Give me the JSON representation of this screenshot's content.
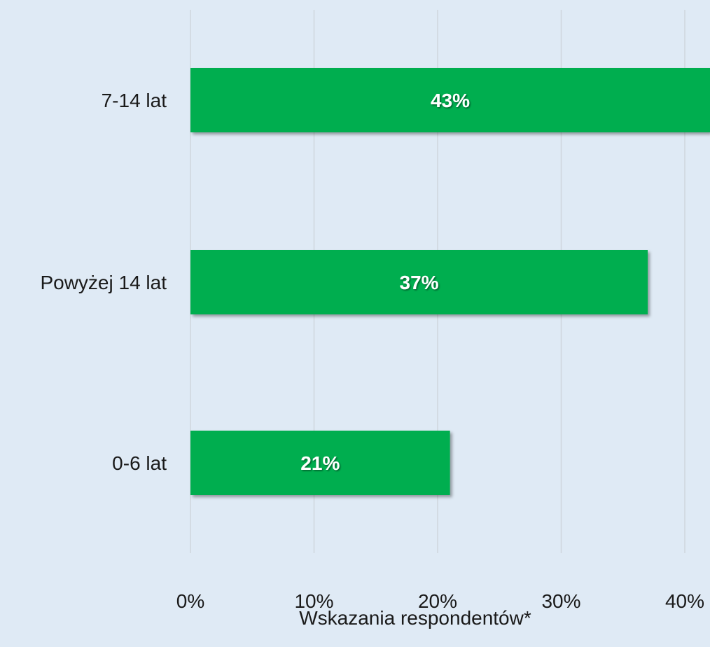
{
  "chart_data": {
    "type": "bar",
    "orientation": "horizontal",
    "categories": [
      "7-14 lat",
      "Powyżej 14 lat",
      "0-6 lat"
    ],
    "values": [
      43,
      37,
      21
    ],
    "data_labels": [
      "43%",
      "37%",
      "21%"
    ],
    "xlabel": "Wskazania respondentów*",
    "ylabel": "",
    "xlim": [
      0,
      40
    ],
    "xticks": [
      0,
      10,
      20,
      30,
      40
    ],
    "xtick_labels": [
      "0%",
      "10%",
      "20%",
      "30%",
      "40%"
    ],
    "grid": true,
    "legend": "none",
    "colors": {
      "bar": "#00ae50",
      "background": "#dfeaf5",
      "grid": "#cfd6dd",
      "data_label": "#ffffff",
      "text": "#1a1a1a"
    }
  }
}
